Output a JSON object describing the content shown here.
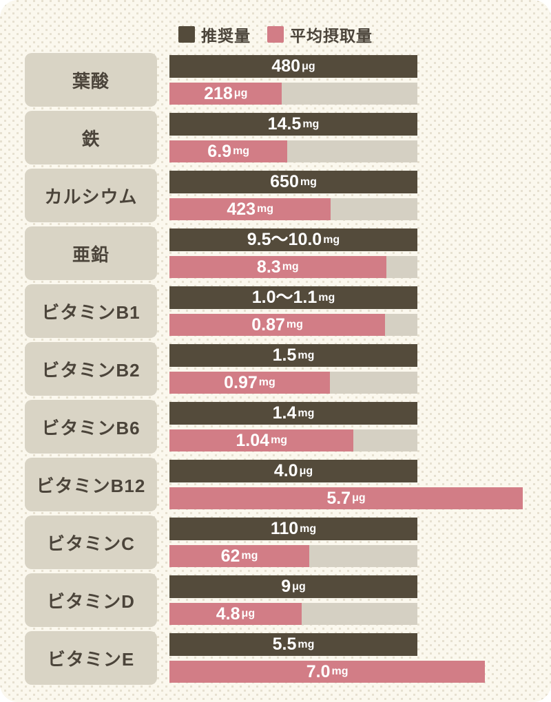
{
  "legend": {
    "recommended_label": "推奨量",
    "intake_label": "平均摂取量"
  },
  "colors": {
    "recommended_bar": "#544b3b",
    "intake_bar": "#d27d86",
    "track": "#d5d0c3",
    "label_box": "#d9d4c5",
    "card_background": "#fbf8ee",
    "dot_pattern": "#e6e0d0",
    "dark_text": "#4b443a",
    "bar_text": "#ffffff"
  },
  "chart_data": {
    "type": "bar",
    "orientation": "horizontal",
    "legend_position": "top-center",
    "series_names": [
      "推奨量",
      "平均摂取量"
    ],
    "note": "Each nutrient row shows a dark recommended-amount bar (full track width) and a pink average-intake bar whose width is intake/recommended of the track; pink can exceed 100%.",
    "rows": [
      {
        "label": "葉酸",
        "recommended": {
          "value": "480",
          "unit": "μg",
          "numeric": 480
        },
        "intake": {
          "value": "218",
          "unit": "μg",
          "numeric": 218
        },
        "intake_bar_percent": 45.4
      },
      {
        "label": "鉄",
        "recommended": {
          "value": "14.5",
          "unit": "mg",
          "numeric": 14.5
        },
        "intake": {
          "value": "6.9",
          "unit": "mg",
          "numeric": 6.9
        },
        "intake_bar_percent": 47.6
      },
      {
        "label": "カルシウム",
        "recommended": {
          "value": "650",
          "unit": "mg",
          "numeric": 650
        },
        "intake": {
          "value": "423",
          "unit": "mg",
          "numeric": 423
        },
        "intake_bar_percent": 65.1
      },
      {
        "label": "亜鉛",
        "recommended": {
          "value": "9.5〜10.0",
          "unit": "mg",
          "numeric_range": [
            9.5,
            10.0
          ]
        },
        "intake": {
          "value": "8.3",
          "unit": "mg",
          "numeric": 8.3
        },
        "intake_bar_percent": 87.4
      },
      {
        "label": "ビタミンB1",
        "recommended": {
          "value": "1.0〜1.1",
          "unit": "mg",
          "numeric_range": [
            1.0,
            1.1
          ]
        },
        "intake": {
          "value": "0.87",
          "unit": "mg",
          "numeric": 0.87
        },
        "intake_bar_percent": 87.0
      },
      {
        "label": "ビタミンB2",
        "recommended": {
          "value": "1.5",
          "unit": "mg",
          "numeric": 1.5
        },
        "intake": {
          "value": "0.97",
          "unit": "mg",
          "numeric": 0.97
        },
        "intake_bar_percent": 64.7
      },
      {
        "label": "ビタミンB6",
        "recommended": {
          "value": "1.4",
          "unit": "mg",
          "numeric": 1.4
        },
        "intake": {
          "value": "1.04",
          "unit": "mg",
          "numeric": 1.04
        },
        "intake_bar_percent": 74.3
      },
      {
        "label": "ビタミンB12",
        "recommended": {
          "value": "4.0",
          "unit": "μg",
          "numeric": 4.0
        },
        "intake": {
          "value": "5.7",
          "unit": "μg",
          "numeric": 5.7
        },
        "intake_bar_percent": 142.5
      },
      {
        "label": "ビタミンC",
        "recommended": {
          "value": "110",
          "unit": "mg",
          "numeric": 110
        },
        "intake": {
          "value": "62",
          "unit": "mg",
          "numeric": 62
        },
        "intake_bar_percent": 56.4
      },
      {
        "label": "ビタミンD",
        "recommended": {
          "value": "9",
          "unit": "μg",
          "numeric": 9
        },
        "intake": {
          "value": "4.8",
          "unit": "μg",
          "numeric": 4.8
        },
        "intake_bar_percent": 53.3
      },
      {
        "label": "ビタミンE",
        "recommended": {
          "value": "5.5",
          "unit": "mg",
          "numeric": 5.5
        },
        "intake": {
          "value": "7.0",
          "unit": "mg",
          "numeric": 7.0
        },
        "intake_bar_percent": 127.3
      }
    ]
  }
}
